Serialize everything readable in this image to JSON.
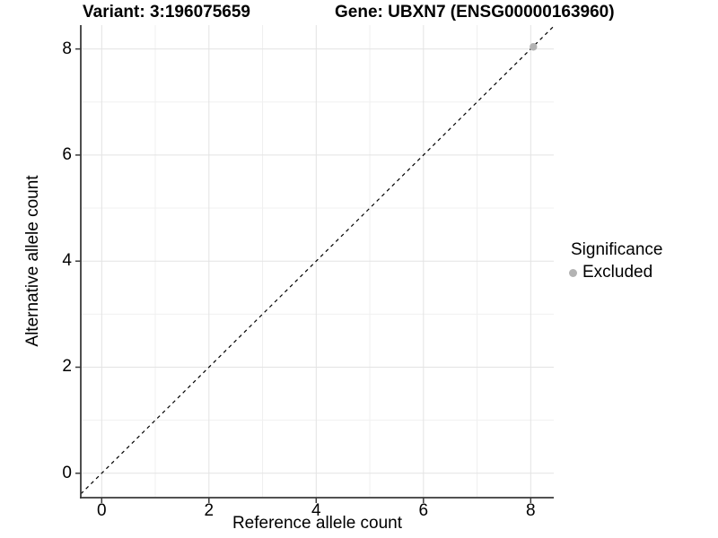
{
  "chart_data": {
    "type": "scatter",
    "title_left": "Variant: 3:196075659",
    "title_right": "Gene: UBXN7 (ENSG00000163960)",
    "xlabel": "Reference allele count",
    "ylabel": "Alternative allele count",
    "x_ticks": [
      0,
      2,
      4,
      6,
      8
    ],
    "y_ticks": [
      0,
      2,
      4,
      6,
      8
    ],
    "xlim": [
      -0.39,
      8.43
    ],
    "ylim": [
      -0.46,
      8.45
    ],
    "grid": true,
    "legend_position": "right",
    "reference_line": {
      "type": "identity",
      "slope": 1,
      "intercept": 0,
      "style": "dashed",
      "color": "#000000"
    },
    "series": [
      {
        "name": "Excluded",
        "color": "#b3b3b3",
        "points": [
          {
            "x": 8.05,
            "y": 8.04
          }
        ]
      }
    ],
    "legend": {
      "title": "Significance",
      "items": [
        {
          "label": "Excluded",
          "color": "#b3b3b3"
        }
      ]
    },
    "colors": {
      "grid_major": "#e3e3e3",
      "grid_minor": "#f0f0f0",
      "axis_line": "#3a3a3a",
      "text": "#000000",
      "background": "#ffffff"
    }
  }
}
